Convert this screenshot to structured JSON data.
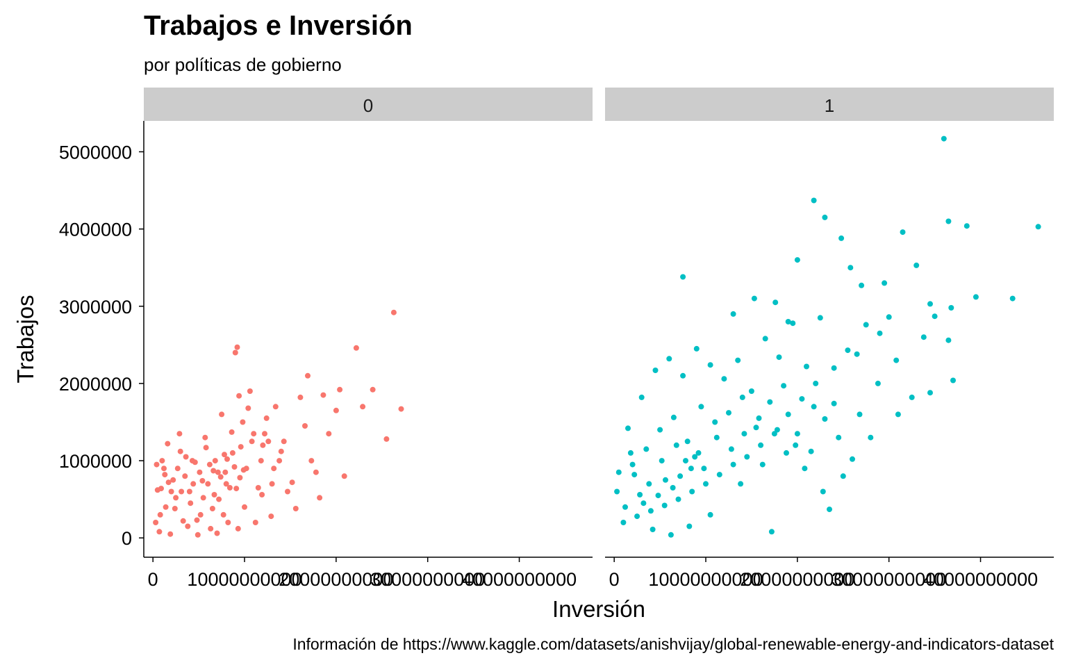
{
  "chart_data": {
    "type": "scatter",
    "title": "Trabajos e Inversión",
    "subtitle": "por políticas de gobierno",
    "caption": "Información de https://www.kaggle.com/datasets/anishvijay/global-renewable-energy-and-indicators-dataset",
    "xlabel": "Inversión",
    "ylabel": "Trabajos",
    "xlim": [
      -1000000000,
      48000000000
    ],
    "ylim": [
      -250000,
      5400000
    ],
    "x_ticks": [
      0,
      10000000000,
      20000000000,
      30000000000,
      40000000000
    ],
    "x_tick_labels": [
      "0",
      "10000000000",
      "20000000000",
      "30000000000",
      "40000000000"
    ],
    "y_ticks": [
      0,
      1000000,
      2000000,
      3000000,
      4000000,
      5000000
    ],
    "y_tick_labels": [
      "0",
      "1000000",
      "2000000",
      "3000000",
      "4000000",
      "5000000"
    ],
    "grid": false,
    "legend": "none",
    "facet_strip_color": "#cccccc",
    "series": [
      {
        "facet": "0",
        "color": "#f8766d",
        "points": [
          [
            500000000,
            620000
          ],
          [
            800000000,
            300000
          ],
          [
            1200000000,
            900000
          ],
          [
            1600000000,
            1220000
          ],
          [
            2200000000,
            750000
          ],
          [
            2900000000,
            1350000
          ],
          [
            3100000000,
            600000
          ],
          [
            3600000000,
            1050000
          ],
          [
            4100000000,
            450000
          ],
          [
            4600000000,
            980000
          ],
          [
            5200000000,
            300000
          ],
          [
            5700000000,
            1300000
          ],
          [
            6000000000,
            700000
          ],
          [
            6300000000,
            120000
          ],
          [
            6800000000,
            1000000
          ],
          [
            7200000000,
            500000
          ],
          [
            7500000000,
            1600000
          ],
          [
            7900000000,
            850000
          ],
          [
            8200000000,
            200000
          ],
          [
            8700000000,
            1100000
          ],
          [
            9000000000,
            2400000
          ],
          [
            9200000000,
            2470000
          ],
          [
            9500000000,
            780000
          ],
          [
            9800000000,
            1500000
          ],
          [
            10200000000,
            900000
          ],
          [
            10600000000,
            1900000
          ],
          [
            11000000000,
            1350000
          ],
          [
            11500000000,
            650000
          ],
          [
            12000000000,
            1200000
          ],
          [
            12400000000,
            1550000
          ],
          [
            12900000000,
            280000
          ],
          [
            13400000000,
            1700000
          ],
          [
            13800000000,
            1000000
          ],
          [
            14300000000,
            1250000
          ],
          [
            14700000000,
            600000
          ],
          [
            15200000000,
            720000
          ],
          [
            15600000000,
            380000
          ],
          [
            16100000000,
            1820000
          ],
          [
            16600000000,
            1450000
          ],
          [
            16900000000,
            2100000
          ],
          [
            17300000000,
            1000000
          ],
          [
            17800000000,
            850000
          ],
          [
            18200000000,
            520000
          ],
          [
            18600000000,
            1850000
          ],
          [
            19200000000,
            1350000
          ],
          [
            20000000000,
            1650000
          ],
          [
            20400000000,
            1920000
          ],
          [
            20900000000,
            800000
          ],
          [
            22200000000,
            2460000
          ],
          [
            22900000000,
            1700000
          ],
          [
            24000000000,
            1920000
          ],
          [
            25500000000,
            1280000
          ],
          [
            26300000000,
            2920000
          ],
          [
            27100000000,
            1670000
          ],
          [
            300000000,
            200000
          ],
          [
            700000000,
            80000
          ],
          [
            1400000000,
            400000
          ],
          [
            1900000000,
            50000
          ],
          [
            2500000000,
            520000
          ],
          [
            3300000000,
            220000
          ],
          [
            3800000000,
            150000
          ],
          [
            4400000000,
            700000
          ],
          [
            4900000000,
            40000
          ],
          [
            5500000000,
            520000
          ],
          [
            6500000000,
            380000
          ],
          [
            7000000000,
            60000
          ],
          [
            7700000000,
            300000
          ],
          [
            8400000000,
            650000
          ],
          [
            9300000000,
            120000
          ],
          [
            10000000000,
            400000
          ],
          [
            11200000000,
            200000
          ],
          [
            1000000000,
            1000000
          ],
          [
            2000000000,
            600000
          ],
          [
            3500000000,
            800000
          ],
          [
            4300000000,
            1000000
          ],
          [
            5100000000,
            850000
          ],
          [
            6200000000,
            950000
          ],
          [
            7100000000,
            850000
          ],
          [
            8000000000,
            700000
          ],
          [
            8900000000,
            920000
          ],
          [
            9600000000,
            1180000
          ],
          [
            10400000000,
            1680000
          ],
          [
            11800000000,
            1000000
          ],
          [
            12600000000,
            1250000
          ],
          [
            13200000000,
            900000
          ],
          [
            5800000000,
            1170000
          ],
          [
            2700000000,
            900000
          ],
          [
            1700000000,
            720000
          ],
          [
            4800000000,
            230000
          ],
          [
            6700000000,
            560000
          ],
          [
            7400000000,
            790000
          ],
          [
            8100000000,
            1020000
          ],
          [
            8600000000,
            1370000
          ],
          [
            9100000000,
            640000
          ],
          [
            9900000000,
            880000
          ],
          [
            10800000000,
            1250000
          ],
          [
            11900000000,
            560000
          ],
          [
            12200000000,
            1350000
          ],
          [
            13000000000,
            700000
          ],
          [
            14000000000,
            1120000
          ],
          [
            400000000,
            950000
          ],
          [
            900000000,
            640000
          ],
          [
            1300000000,
            820000
          ],
          [
            2400000000,
            380000
          ],
          [
            3000000000,
            1120000
          ],
          [
            4000000000,
            600000
          ],
          [
            5400000000,
            740000
          ],
          [
            6600000000,
            870000
          ],
          [
            7800000000,
            1080000
          ],
          [
            9400000000,
            1840000
          ]
        ]
      },
      {
        "facet": "1",
        "color": "#00bfc4",
        "points": [
          [
            36000000000,
            5170000
          ],
          [
            21800000000,
            4370000
          ],
          [
            23000000000,
            4150000
          ],
          [
            38500000000,
            4040000
          ],
          [
            36500000000,
            4100000
          ],
          [
            31500000000,
            3960000
          ],
          [
            24800000000,
            3880000
          ],
          [
            25800000000,
            3500000
          ],
          [
            20000000000,
            3600000
          ],
          [
            17600000000,
            3050000
          ],
          [
            15300000000,
            3100000
          ],
          [
            7500000000,
            3380000
          ],
          [
            13000000000,
            2900000
          ],
          [
            19000000000,
            2800000
          ],
          [
            27000000000,
            3270000
          ],
          [
            29500000000,
            3300000
          ],
          [
            33000000000,
            3530000
          ],
          [
            34500000000,
            3030000
          ],
          [
            36500000000,
            2560000
          ],
          [
            39500000000,
            3120000
          ],
          [
            43500000000,
            3100000
          ],
          [
            46300000000,
            4030000
          ],
          [
            37000000000,
            2040000
          ],
          [
            34500000000,
            1880000
          ],
          [
            31000000000,
            1600000
          ],
          [
            29000000000,
            2650000
          ],
          [
            26500000000,
            2380000
          ],
          [
            24000000000,
            2200000
          ],
          [
            22000000000,
            2000000
          ],
          [
            20500000000,
            1800000
          ],
          [
            19000000000,
            1600000
          ],
          [
            17500000000,
            1350000
          ],
          [
            16000000000,
            1200000
          ],
          [
            14500000000,
            1050000
          ],
          [
            13000000000,
            950000
          ],
          [
            11500000000,
            820000
          ],
          [
            10000000000,
            700000
          ],
          [
            8500000000,
            600000
          ],
          [
            7000000000,
            500000
          ],
          [
            5500000000,
            420000
          ],
          [
            4000000000,
            350000
          ],
          [
            2500000000,
            280000
          ],
          [
            1000000000,
            200000
          ],
          [
            500000000,
            850000
          ],
          [
            1500000000,
            1420000
          ],
          [
            3000000000,
            1820000
          ],
          [
            4500000000,
            2170000
          ],
          [
            6000000000,
            2320000
          ],
          [
            7500000000,
            2100000
          ],
          [
            9000000000,
            2450000
          ],
          [
            10500000000,
            2240000
          ],
          [
            12000000000,
            2060000
          ],
          [
            13500000000,
            2300000
          ],
          [
            15000000000,
            1900000
          ],
          [
            16500000000,
            2580000
          ],
          [
            18000000000,
            2340000
          ],
          [
            19500000000,
            2780000
          ],
          [
            21000000000,
            2220000
          ],
          [
            22500000000,
            2850000
          ],
          [
            24000000000,
            1740000
          ],
          [
            25500000000,
            2430000
          ],
          [
            27500000000,
            2760000
          ],
          [
            30000000000,
            2860000
          ],
          [
            32500000000,
            1820000
          ],
          [
            35000000000,
            2870000
          ],
          [
            2000000000,
            950000
          ],
          [
            3500000000,
            1150000
          ],
          [
            5000000000,
            1400000
          ],
          [
            6500000000,
            1560000
          ],
          [
            8000000000,
            1250000
          ],
          [
            9500000000,
            1700000
          ],
          [
            11000000000,
            1500000
          ],
          [
            12500000000,
            1620000
          ],
          [
            14000000000,
            1820000
          ],
          [
            15500000000,
            1430000
          ],
          [
            17000000000,
            1760000
          ],
          [
            18500000000,
            1970000
          ],
          [
            20000000000,
            1350000
          ],
          [
            21500000000,
            1120000
          ],
          [
            23000000000,
            1540000
          ],
          [
            26000000000,
            1020000
          ],
          [
            28000000000,
            1300000
          ],
          [
            25000000000,
            800000
          ],
          [
            23500000000,
            370000
          ],
          [
            17200000000,
            80000
          ],
          [
            10500000000,
            300000
          ],
          [
            8200000000,
            150000
          ],
          [
            6200000000,
            40000
          ],
          [
            4200000000,
            110000
          ],
          [
            2800000000,
            560000
          ],
          [
            1200000000,
            400000
          ],
          [
            300000000,
            600000
          ],
          [
            3800000000,
            700000
          ],
          [
            5200000000,
            1000000
          ],
          [
            6800000000,
            1200000
          ],
          [
            8800000000,
            1050000
          ],
          [
            9800000000,
            900000
          ],
          [
            11200000000,
            1300000
          ],
          [
            12800000000,
            1150000
          ],
          [
            14200000000,
            1350000
          ],
          [
            15800000000,
            1550000
          ],
          [
            17800000000,
            1400000
          ],
          [
            19800000000,
            1200000
          ],
          [
            21800000000,
            1700000
          ],
          [
            24500000000,
            1300000
          ],
          [
            7200000000,
            800000
          ],
          [
            8400000000,
            900000
          ],
          [
            9200000000,
            1100000
          ],
          [
            7800000000,
            1000000
          ],
          [
            6400000000,
            650000
          ],
          [
            5600000000,
            750000
          ],
          [
            4800000000,
            550000
          ],
          [
            3200000000,
            450000
          ],
          [
            2200000000,
            820000
          ],
          [
            1800000000,
            1100000
          ],
          [
            13800000000,
            700000
          ],
          [
            16200000000,
            950000
          ],
          [
            18800000000,
            1100000
          ],
          [
            20800000000,
            900000
          ],
          [
            22800000000,
            600000
          ],
          [
            26800000000,
            1600000
          ],
          [
            28800000000,
            2000000
          ],
          [
            30800000000,
            2300000
          ],
          [
            33800000000,
            2600000
          ],
          [
            36800000000,
            2980000
          ]
        ]
      }
    ]
  }
}
